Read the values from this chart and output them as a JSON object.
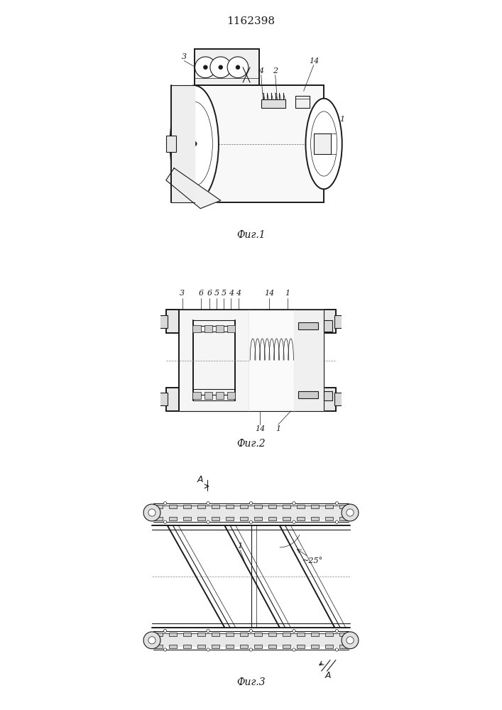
{
  "title": "1162398",
  "title_fontsize": 11,
  "fig1_caption": "Фиг.1",
  "fig2_caption": "Фиг.2",
  "fig3_caption": "Фиг.3",
  "caption_fontsize": 10,
  "bg_color": "#ffffff",
  "line_color": "#1a1a1a",
  "lw": 0.8,
  "lwt": 1.4,
  "lwn": 0.5
}
